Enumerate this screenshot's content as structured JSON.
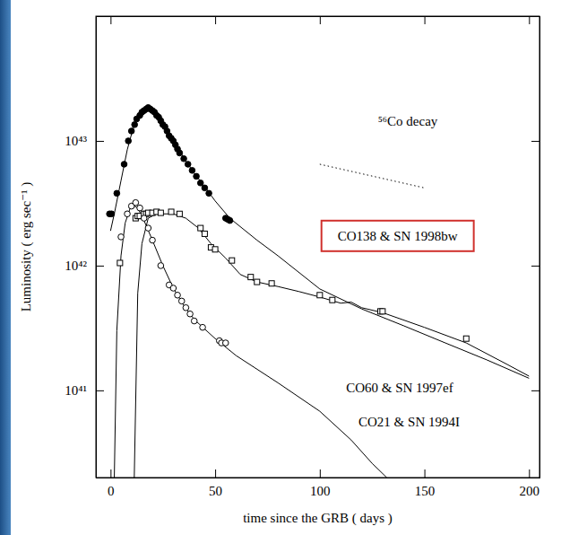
{
  "chart_data": {
    "type": "scatter",
    "xlabel": "time since the GRB ( days )",
    "ylabel": "Luminosity ( erg sec⁻¹ )",
    "log": "y",
    "xlim": [
      -7,
      205
    ],
    "ylim": [
      2e+40,
      1e+44
    ],
    "xticks": [
      0,
      50,
      100,
      150,
      200
    ],
    "yticks": [
      {
        "value": 1e+41,
        "label": "10⁴¹"
      },
      {
        "value": 1e+42,
        "label": "10⁴²"
      },
      {
        "value": 1e+43,
        "label": "10⁴³"
      }
    ],
    "series": [
      {
        "name": "CO138 & SN 1998bw",
        "type": "scatter",
        "marker": "filled-circle",
        "color": "#000000",
        "x": [
          -0.5,
          0.5,
          3,
          6.5,
          8.5,
          10,
          11.5,
          12.5,
          14,
          15,
          16,
          17,
          18,
          19,
          20,
          21,
          22,
          23,
          24,
          25,
          26,
          27,
          28,
          29,
          30,
          31,
          32,
          33,
          35,
          37,
          39,
          41,
          43,
          45,
          47,
          55,
          56,
          57
        ],
        "values": [
          2.6e+42,
          2.6e+42,
          3.8e+42,
          6.5e+42,
          1e+43,
          1.2e+43,
          1.35e+43,
          1.5e+43,
          1.6e+43,
          1.7e+43,
          1.75e+43,
          1.8e+43,
          1.85e+43,
          1.8e+43,
          1.75e+43,
          1.7e+43,
          1.6e+43,
          1.55e+43,
          1.45e+43,
          1.35e+43,
          1.3e+43,
          1.2e+43,
          1.1e+43,
          1.05e+43,
          1e+43,
          9.3e+42,
          8.6e+42,
          8e+42,
          7.2e+42,
          6.5e+42,
          5.8e+42,
          5.2e+42,
          4.6e+42,
          4.2e+42,
          3.8e+42,
          2.4e+42,
          2.35e+42,
          2.3e+42
        ],
        "model_x": [
          0,
          2,
          5,
          8,
          11,
          14,
          18,
          22,
          26,
          30,
          35,
          40,
          45,
          50,
          57,
          70,
          80,
          100,
          120,
          140,
          160,
          180,
          200
        ],
        "model_values": [
          1.9e+42,
          2.7e+42,
          4.8e+42,
          8.5e+42,
          1.3e+43,
          1.65e+43,
          1.85e+43,
          1.65e+43,
          1.3e+43,
          1e+43,
          7.3e+42,
          5.5e+42,
          4.3e+42,
          3.3e+42,
          2.4e+42,
          1.6e+42,
          1.2e+42,
          6.5e+41,
          4.5e+41,
          3.3e+41,
          2.4e+41,
          1.75e+41,
          1.25e+41
        ]
      },
      {
        "name": "CO60 & SN 1997ef",
        "type": "scatter",
        "marker": "open-square",
        "color": "#000000",
        "x": [
          4.5,
          12,
          13,
          14,
          16,
          17,
          18,
          20,
          22,
          24,
          29,
          33,
          43,
          45,
          48,
          50,
          58,
          67,
          70,
          77,
          100,
          106,
          129,
          130,
          170
        ],
        "values": [
          1.05e+42,
          2.4e+42,
          2.5e+42,
          2.5e+42,
          2.6e+42,
          2.6e+42,
          2.65e+42,
          2.65e+42,
          2.7e+42,
          2.65e+42,
          2.7e+42,
          2.6e+42,
          2e+42,
          1.8e+42,
          1.4e+42,
          1.35e+42,
          1.1e+42,
          8.1e+41,
          7.4e+41,
          7.2e+41,
          5.8e+41,
          5.3e+41,
          4.3e+41,
          4.3e+41,
          2.6e+41
        ],
        "model_x": [
          11,
          13,
          15,
          18,
          22,
          30,
          36,
          42,
          48,
          55,
          62,
          70,
          80,
          90,
          100,
          110,
          115,
          120,
          130,
          150,
          170,
          190,
          200
        ],
        "model_values": [
          1e+40,
          6e+41,
          1.5e+42,
          2.4e+42,
          2.6e+42,
          2.6e+42,
          2.4e+42,
          2e+42,
          1.5e+42,
          1.15e+42,
          8.5e+41,
          7.4e+41,
          6.8e+41,
          6.2e+41,
          5.6e+41,
          5e+41,
          5.1e+41,
          4.6e+41,
          4.2e+41,
          3.2e+41,
          2.4e+41,
          1.6e+41,
          1.3e+41
        ]
      },
      {
        "name": "CO21 & SN 1994I",
        "type": "scatter",
        "marker": "open-circle",
        "color": "#000000",
        "x": [
          5,
          8,
          10,
          12,
          14,
          16,
          18,
          20,
          24,
          28,
          30,
          32,
          34,
          36,
          38,
          40,
          44,
          52,
          53,
          55
        ],
        "values": [
          1.7e+42,
          2.6e+42,
          3e+42,
          3.2e+42,
          2.9e+42,
          2.4e+42,
          2e+42,
          1.6e+42,
          1e+42,
          7e+41,
          6.6e+41,
          5.8e+41,
          5.2e+41,
          4.6e+41,
          4.1e+41,
          3.6e+41,
          3.2e+41,
          2.5e+41,
          2.4e+41,
          2.4e+41
        ],
        "model_x": [
          1.5,
          3,
          5,
          7,
          10,
          13,
          16,
          20,
          25,
          30,
          35,
          40,
          50,
          60,
          80,
          100,
          115,
          125,
          132
        ],
        "model_values": [
          1e+40,
          3e+41,
          1.2e+42,
          2.2e+42,
          3.1e+42,
          2.9e+42,
          2.3e+42,
          1.6e+42,
          1e+42,
          6.6e+41,
          4.8e+41,
          3.7e+41,
          2.6e+41,
          1.9e+41,
          1.15e+41,
          6.8e+40,
          4e+40,
          2.6e+40,
          2e+40
        ]
      },
      {
        "name": "⁵⁶Co decay",
        "type": "line",
        "line_style": "dotted",
        "color": "#000000",
        "x": [
          100,
          150
        ],
        "values": [
          6.5e+42,
          4.2e+42
        ]
      }
    ]
  }
}
